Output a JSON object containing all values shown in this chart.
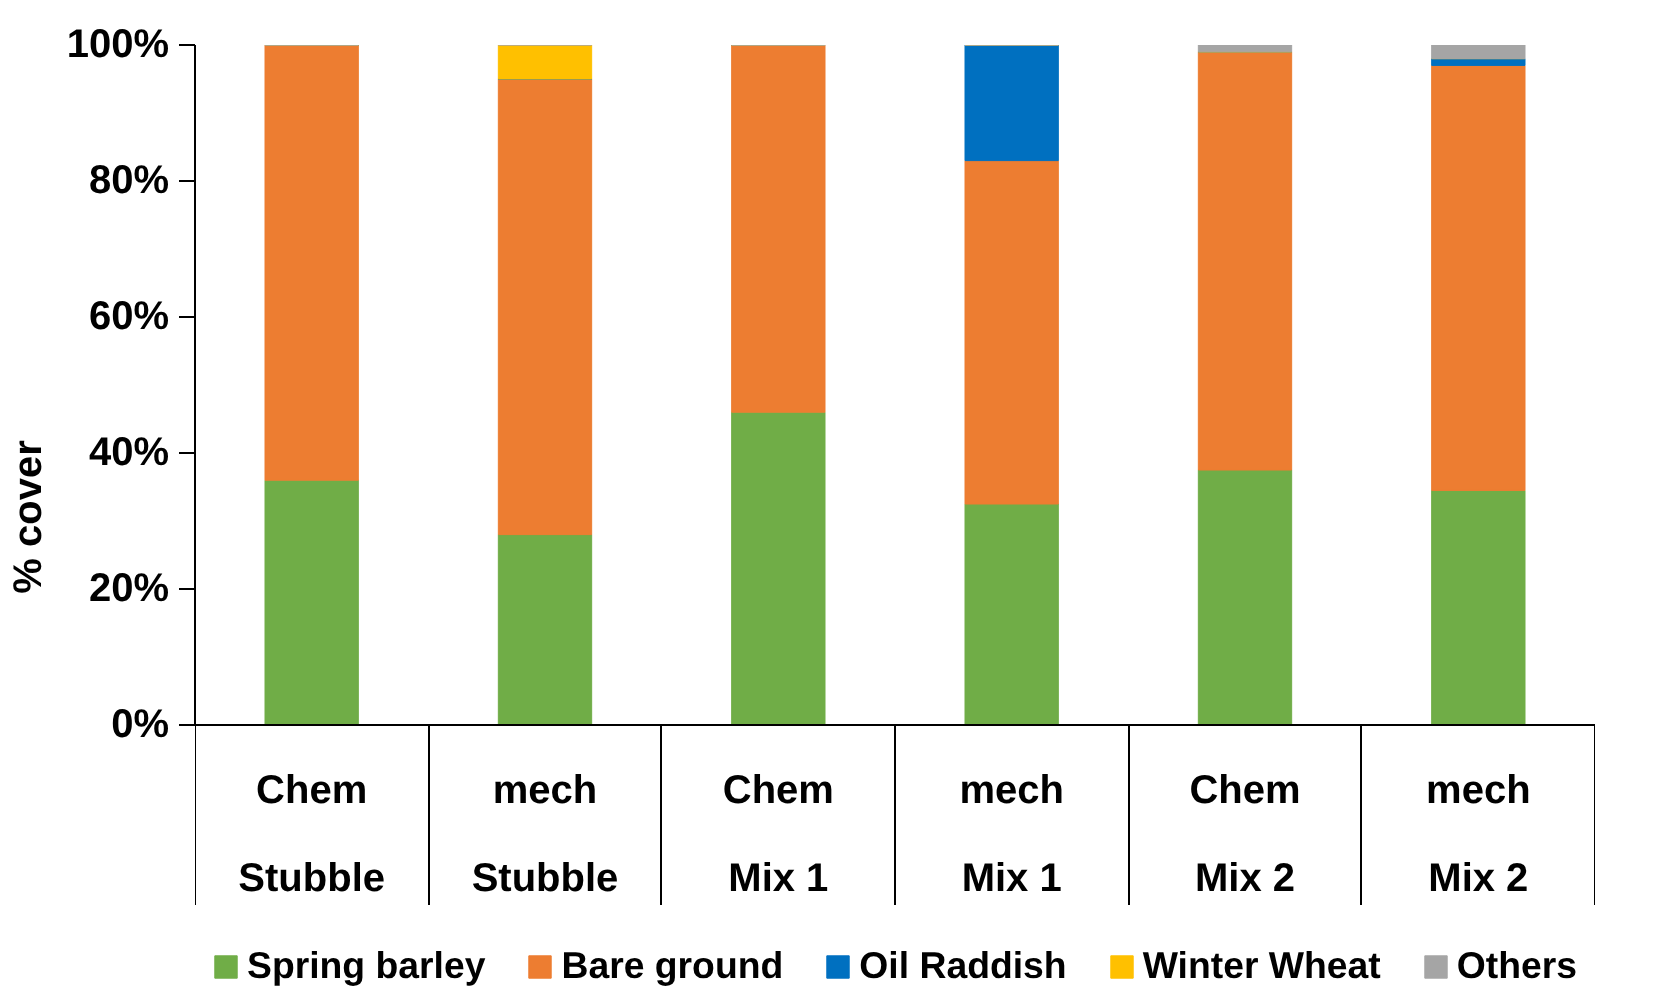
{
  "chart_data": {
    "type": "bar",
    "stacked": true,
    "ylabel": "% cover",
    "categories": [
      "Chem Stubble",
      "mech Stubble",
      "Chem Mix 1",
      "mech Mix 1",
      "Chem Mix 2",
      "mech Mix 2"
    ],
    "series": [
      {
        "name": "Spring barley",
        "color": "#70ad47",
        "values": [
          36,
          28,
          46,
          32.5,
          37.5,
          34.5
        ]
      },
      {
        "name": "Bare ground",
        "color": "#ed7d31",
        "values": [
          64,
          67,
          54,
          50.5,
          61.5,
          62.5
        ]
      },
      {
        "name": "Oil Raddish",
        "color": "#0070c0",
        "values": [
          0,
          0,
          0,
          17,
          0,
          1
        ]
      },
      {
        "name": "Winter Wheat",
        "color": "#ffc000",
        "values": [
          0,
          5,
          0,
          0,
          0,
          0
        ]
      },
      {
        "name": "Others",
        "color": "#a5a5a5",
        "values": [
          0,
          0,
          0,
          0,
          1,
          2
        ]
      }
    ],
    "ylim": [
      0,
      100
    ],
    "yticks": [
      {
        "value": 0,
        "label": "0%"
      },
      {
        "value": 20,
        "label": "20%"
      },
      {
        "value": 40,
        "label": "40%"
      },
      {
        "value": 60,
        "label": "60%"
      },
      {
        "value": 80,
        "label": "80%"
      },
      {
        "value": 100,
        "label": "100%"
      }
    ],
    "grid": false,
    "legend": "bottom"
  }
}
